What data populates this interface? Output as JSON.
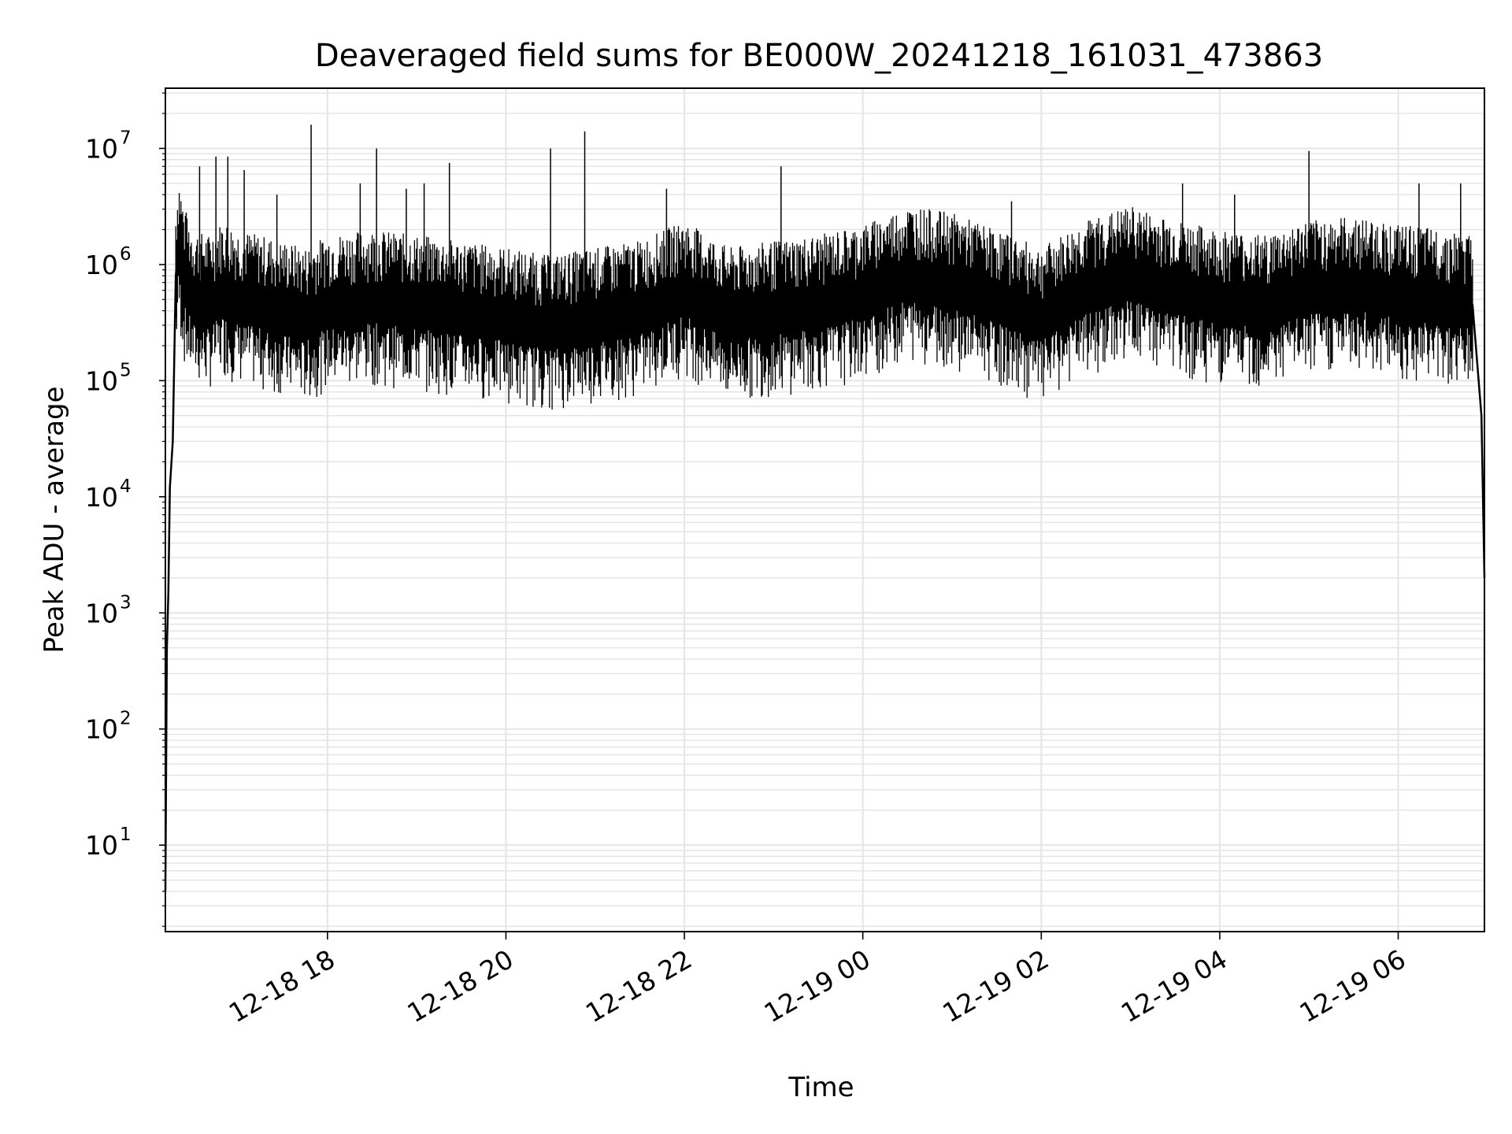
{
  "chart_data": {
    "type": "line",
    "title": "Deaveraged field sums for BE000W_20241218_161031_473863",
    "xlabel": "Time",
    "ylabel": "Peak ADU - average",
    "yscale": "log",
    "ylim": [
      1.8,
      33000000.0
    ],
    "xlim": [
      "2024-12-18 16:11",
      "2024-12-19 06:58"
    ],
    "grid": true,
    "grid_minor": true,
    "line_color": "#000000",
    "grid_color": "#e5e5e5",
    "x_ticks": [
      {
        "value": "2024-12-18 18:00",
        "label": "12-18 18"
      },
      {
        "value": "2024-12-18 20:00",
        "label": "12-18 20"
      },
      {
        "value": "2024-12-18 22:00",
        "label": "12-18 22"
      },
      {
        "value": "2024-12-19 00:00",
        "label": "12-19 00"
      },
      {
        "value": "2024-12-19 02:00",
        "label": "12-19 02"
      },
      {
        "value": "2024-12-19 04:00",
        "label": "12-19 04"
      },
      {
        "value": "2024-12-19 06:00",
        "label": "12-19 06"
      }
    ],
    "y_ticks": [
      {
        "value": 10,
        "base": "10",
        "exp": "1"
      },
      {
        "value": 100,
        "base": "10",
        "exp": "2"
      },
      {
        "value": 1000,
        "base": "10",
        "exp": "3"
      },
      {
        "value": 10000,
        "base": "10",
        "exp": "4"
      },
      {
        "value": 100000,
        "base": "10",
        "exp": "5"
      },
      {
        "value": 1000000,
        "base": "10",
        "exp": "6"
      },
      {
        "value": 10000000,
        "base": "10",
        "exp": "7"
      }
    ],
    "series": [
      {
        "color": "#000000",
        "x": [
          "2024-12-18 16:11",
          "2024-12-18 16:12",
          "2024-12-18 16:13",
          "2024-12-18 16:14",
          "2024-12-18 16:16",
          "2024-12-18 16:18",
          "2024-12-18 16:20",
          "2024-12-18 16:24",
          "2024-12-18 16:30",
          "2024-12-18 16:40",
          "2024-12-18 16:50",
          "2024-12-18 17:00",
          "2024-12-18 17:15",
          "2024-12-18 17:30",
          "2024-12-18 17:45",
          "2024-12-18 18:00",
          "2024-12-18 18:30",
          "2024-12-18 19:00",
          "2024-12-18 19:30",
          "2024-12-18 20:00",
          "2024-12-18 20:30",
          "2024-12-18 21:00",
          "2024-12-18 21:30",
          "2024-12-18 22:00",
          "2024-12-18 22:30",
          "2024-12-18 23:00",
          "2024-12-18 23:30",
          "2024-12-19 00:00",
          "2024-12-19 00:30",
          "2024-12-19 01:00",
          "2024-12-19 01:30",
          "2024-12-19 02:00",
          "2024-12-19 02:30",
          "2024-12-19 03:00",
          "2024-12-19 03:30",
          "2024-12-19 04:00",
          "2024-12-19 04:30",
          "2024-12-19 05:00",
          "2024-12-19 05:30",
          "2024-12-19 06:00",
          "2024-12-19 06:30",
          "2024-12-19 06:50",
          "2024-12-19 06:56",
          "2024-12-19 06:58"
        ],
        "y": [
          4,
          500,
          1500,
          12000,
          30000,
          800000,
          1500000,
          700000,
          500000,
          450000,
          600000,
          500000,
          450000,
          400000,
          350000,
          450000,
          500000,
          450000,
          400000,
          350000,
          300000,
          350000,
          400000,
          600000,
          350000,
          400000,
          450000,
          550000,
          800000,
          700000,
          500000,
          350000,
          600000,
          800000,
          600000,
          500000,
          450000,
          600000,
          650000,
          550000,
          500000,
          450000,
          50000,
          2000
        ]
      }
    ],
    "spikes": [
      {
        "x": "2024-12-18 16:25",
        "y": 2800000
      },
      {
        "x": "2024-12-18 16:34",
        "y": 7000000
      },
      {
        "x": "2024-12-18 16:45",
        "y": 8500000
      },
      {
        "x": "2024-12-18 16:53",
        "y": 8500000
      },
      {
        "x": "2024-12-18 17:04",
        "y": 6500000
      },
      {
        "x": "2024-12-18 17:26",
        "y": 4000000
      },
      {
        "x": "2024-12-18 17:49",
        "y": 16000000
      },
      {
        "x": "2024-12-18 18:22",
        "y": 5000000
      },
      {
        "x": "2024-12-18 18:33",
        "y": 10000000
      },
      {
        "x": "2024-12-18 18:53",
        "y": 4500000
      },
      {
        "x": "2024-12-18 19:05",
        "y": 5000000
      },
      {
        "x": "2024-12-18 19:22",
        "y": 7500000
      },
      {
        "x": "2024-12-18 20:30",
        "y": 10000000
      },
      {
        "x": "2024-12-18 20:53",
        "y": 14000000
      },
      {
        "x": "2024-12-18 21:48",
        "y": 4500000
      },
      {
        "x": "2024-12-18 23:05",
        "y": 7000000
      },
      {
        "x": "2024-12-19 01:40",
        "y": 3500000
      },
      {
        "x": "2024-12-19 03:35",
        "y": 5000000
      },
      {
        "x": "2024-12-19 04:10",
        "y": 4000000
      },
      {
        "x": "2024-12-19 05:00",
        "y": 9500000
      },
      {
        "x": "2024-12-19 06:14",
        "y": 5000000
      },
      {
        "x": "2024-12-19 06:42",
        "y": 5000000
      }
    ]
  }
}
